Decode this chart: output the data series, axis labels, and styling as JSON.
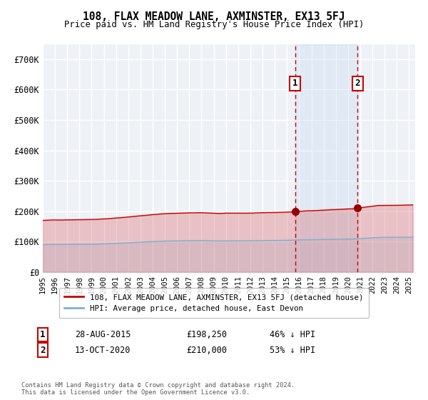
{
  "title": "108, FLAX MEADOW LANE, AXMINSTER, EX13 5FJ",
  "subtitle": "Price paid vs. HM Land Registry's House Price Index (HPI)",
  "hpi_line_color": "#7ab0d4",
  "hpi_fill_color": "#b8d4e8",
  "price_color": "#cc0000",
  "vline_color": "#cc0000",
  "marker_color": "#990000",
  "background_color": "#eef2f7",
  "grid_color": "#ffffff",
  "sale1_date_num": 2015.66,
  "sale1_price": 198250,
  "sale1_label": "28-AUG-2015",
  "sale1_pct": "46% ↓ HPI",
  "sale2_date_num": 2020.79,
  "sale2_price": 210000,
  "sale2_label": "13-OCT-2020",
  "sale2_pct": "53% ↓ HPI",
  "ylabel_ticks": [
    0,
    100000,
    200000,
    300000,
    400000,
    500000,
    600000,
    700000
  ],
  "ylabel_labels": [
    "£0",
    "£100K",
    "£200K",
    "£300K",
    "£400K",
    "£500K",
    "£600K",
    "£700K"
  ],
  "xlim_start": 1995.0,
  "xlim_end": 2025.5,
  "ylim_max": 750000,
  "legend_line1": "108, FLAX MEADOW LANE, AXMINSTER, EX13 5FJ (detached house)",
  "legend_line2": "HPI: Average price, detached house, East Devon",
  "footnote": "Contains HM Land Registry data © Crown copyright and database right 2024.\nThis data is licensed under the Open Government Licence v3.0."
}
